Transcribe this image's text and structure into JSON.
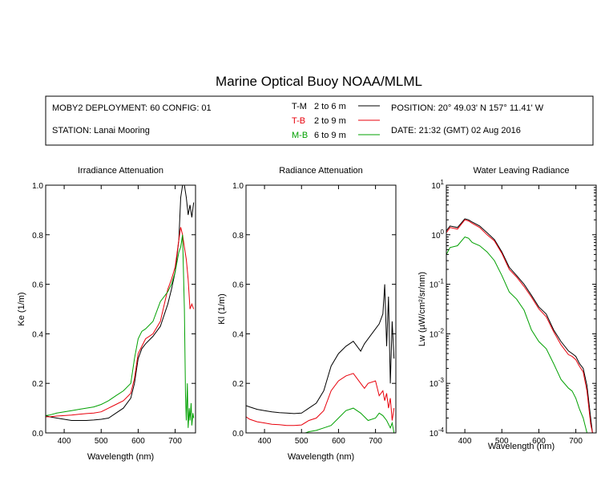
{
  "title": "Marine Optical Buoy NOAA/MLML",
  "info": {
    "deployment": "MOBY2 DEPLOYMENT: 60 CONFIG: 01",
    "station": "STATION: Lanai Mooring",
    "position": "POSITION: 20° 49.03' N   157° 11.41' W",
    "date": "DATE: 21:32 (GMT) 02 Aug 2016",
    "legend": [
      {
        "code": "T-M",
        "range": "2 to 6  m",
        "color": "#000000"
      },
      {
        "code": "T-B",
        "range": "2 to 9  m",
        "color": "#e8000b"
      },
      {
        "code": "M-B",
        "range": "6 to 9  m",
        "color": "#00a000"
      }
    ]
  },
  "chart_data": [
    {
      "type": "line",
      "title": "Irradiance Attenuation",
      "xlabel": "Wavelength (nm)",
      "ylabel": "Ke  (1/m)",
      "xlim": [
        350,
        755
      ],
      "ylim": [
        0,
        1.0
      ],
      "xticks": [
        "400",
        "500",
        "600",
        "700"
      ],
      "yticks": [
        "0.0",
        "0.2",
        "0.4",
        "0.6",
        "0.8",
        "1.0"
      ],
      "series": [
        {
          "name": "T-M",
          "color": "#000000",
          "x": [
            350,
            360,
            380,
            400,
            420,
            440,
            460,
            480,
            500,
            520,
            540,
            560,
            580,
            590,
            600,
            610,
            620,
            640,
            660,
            680,
            690,
            700,
            710,
            715,
            720,
            722,
            725,
            730,
            735,
            740,
            745,
            750
          ],
          "y": [
            0.07,
            0.065,
            0.06,
            0.055,
            0.05,
            0.05,
            0.05,
            0.052,
            0.055,
            0.06,
            0.08,
            0.1,
            0.14,
            0.2,
            0.3,
            0.34,
            0.36,
            0.39,
            0.43,
            0.52,
            0.58,
            0.65,
            0.78,
            0.95,
            1.0,
            1.0,
            1.0,
            0.95,
            0.88,
            0.92,
            0.87,
            0.93
          ]
        },
        {
          "name": "T-B",
          "color": "#e8000b",
          "x": [
            350,
            360,
            380,
            400,
            420,
            440,
            460,
            480,
            500,
            520,
            540,
            560,
            580,
            590,
            600,
            610,
            620,
            640,
            660,
            680,
            690,
            700,
            710,
            715,
            720,
            725,
            730,
            735,
            740,
            745,
            750
          ],
          "y": [
            0.065,
            0.065,
            0.068,
            0.07,
            0.072,
            0.075,
            0.078,
            0.08,
            0.085,
            0.1,
            0.115,
            0.13,
            0.16,
            0.22,
            0.32,
            0.35,
            0.38,
            0.4,
            0.45,
            0.58,
            0.62,
            0.67,
            0.78,
            0.83,
            0.8,
            0.75,
            0.7,
            0.62,
            0.5,
            0.52,
            0.5
          ]
        },
        {
          "name": "M-B",
          "color": "#00a000",
          "x": [
            350,
            360,
            380,
            400,
            420,
            440,
            460,
            480,
            500,
            520,
            540,
            560,
            580,
            590,
            600,
            610,
            620,
            640,
            660,
            680,
            690,
            700,
            710,
            715,
            720,
            725,
            728,
            730,
            733,
            735,
            738,
            740,
            743,
            745,
            748,
            750
          ],
          "y": [
            0.07,
            0.072,
            0.08,
            0.085,
            0.09,
            0.095,
            0.1,
            0.105,
            0.115,
            0.13,
            0.15,
            0.17,
            0.2,
            0.3,
            0.38,
            0.41,
            0.42,
            0.45,
            0.53,
            0.57,
            0.6,
            0.65,
            0.73,
            0.75,
            0.8,
            0.5,
            0.15,
            0.05,
            0.2,
            0.02,
            0.1,
            0.05,
            0.12,
            0.03,
            0.08,
            0.06
          ]
        }
      ]
    },
    {
      "type": "line",
      "title": "Radiance Attenuation",
      "xlabel": "Wavelength (nm)",
      "ylabel": "Kl  (1/m)",
      "xlim": [
        350,
        755
      ],
      "ylim": [
        0,
        1.0
      ],
      "xticks": [
        "400",
        "500",
        "600",
        "700"
      ],
      "yticks": [
        "0.0",
        "0.2",
        "0.4",
        "0.6",
        "0.8",
        "1.0"
      ],
      "series": [
        {
          "name": "T-M",
          "color": "#000000",
          "x": [
            350,
            360,
            380,
            400,
            420,
            440,
            460,
            480,
            500,
            520,
            540,
            560,
            580,
            600,
            620,
            640,
            660,
            670,
            680,
            700,
            710,
            720,
            725,
            730,
            735,
            740,
            745,
            750
          ],
          "y": [
            0.11,
            0.105,
            0.095,
            0.09,
            0.085,
            0.082,
            0.08,
            0.078,
            0.08,
            0.1,
            0.12,
            0.17,
            0.27,
            0.32,
            0.35,
            0.37,
            0.33,
            0.36,
            0.38,
            0.42,
            0.44,
            0.48,
            0.6,
            0.35,
            0.55,
            0.2,
            0.45,
            0.3
          ]
        },
        {
          "name": "T-B",
          "color": "#e8000b",
          "x": [
            350,
            360,
            380,
            400,
            420,
            440,
            460,
            480,
            500,
            520,
            540,
            560,
            580,
            600,
            620,
            640,
            660,
            670,
            680,
            700,
            710,
            720,
            725,
            730,
            735,
            740,
            745,
            750
          ],
          "y": [
            0.065,
            0.055,
            0.045,
            0.04,
            0.035,
            0.033,
            0.03,
            0.03,
            0.032,
            0.05,
            0.06,
            0.09,
            0.17,
            0.21,
            0.23,
            0.24,
            0.2,
            0.18,
            0.2,
            0.21,
            0.15,
            0.17,
            0.13,
            0.16,
            0.1,
            0.14,
            0.05,
            0.1
          ]
        },
        {
          "name": "M-B",
          "color": "#00a000",
          "x": [
            510,
            520,
            540,
            560,
            580,
            600,
            620,
            640,
            660,
            680,
            700,
            710,
            720,
            730,
            740,
            745,
            750
          ],
          "y": [
            0.0,
            0.005,
            0.01,
            0.02,
            0.03,
            0.06,
            0.09,
            0.1,
            0.08,
            0.05,
            0.06,
            0.08,
            0.07,
            0.05,
            0.02,
            0.04,
            0.0
          ]
        }
      ]
    },
    {
      "type": "line",
      "title": "Water Leaving Radiance",
      "xlabel": "Wavelength (nm)",
      "ylabel": "Lw  (µW/cm²/sr/nm)",
      "yscale": "log",
      "xlim": [
        350,
        755
      ],
      "ylim": [
        0.0001,
        10
      ],
      "xticks": [
        "400",
        "500",
        "600",
        "700"
      ],
      "yticks": [
        "10-4",
        "10-3",
        "10-2",
        "10-1",
        "100",
        "101"
      ],
      "series": [
        {
          "name": "T-M",
          "color": "#000000",
          "x": [
            350,
            360,
            380,
            400,
            410,
            420,
            440,
            460,
            480,
            500,
            520,
            540,
            560,
            580,
            600,
            620,
            640,
            660,
            680,
            690,
            700,
            710,
            720,
            730,
            740,
            745
          ],
          "y": [
            1.2,
            1.5,
            1.4,
            2.1,
            2.0,
            1.8,
            1.5,
            1.1,
            0.8,
            0.45,
            0.22,
            0.15,
            0.1,
            0.06,
            0.035,
            0.025,
            0.012,
            0.007,
            0.0045,
            0.004,
            0.0035,
            0.0025,
            0.002,
            0.0009,
            0.0002,
            0.0001
          ]
        },
        {
          "name": "T-B",
          "color": "#e8000b",
          "x": [
            350,
            360,
            380,
            400,
            410,
            420,
            440,
            460,
            480,
            500,
            520,
            540,
            560,
            580,
            600,
            620,
            640,
            660,
            680,
            690,
            700,
            710,
            720,
            730,
            740,
            745
          ],
          "y": [
            1.1,
            1.4,
            1.3,
            2.0,
            1.9,
            1.7,
            1.4,
            1.0,
            0.75,
            0.42,
            0.2,
            0.14,
            0.09,
            0.055,
            0.032,
            0.022,
            0.011,
            0.006,
            0.0038,
            0.0035,
            0.003,
            0.0022,
            0.0017,
            0.0007,
            0.00015,
            0.0001
          ]
        },
        {
          "name": "M-B",
          "color": "#00a000",
          "x": [
            350,
            360,
            380,
            400,
            410,
            420,
            440,
            460,
            480,
            500,
            520,
            540,
            560,
            580,
            600,
            620,
            640,
            660,
            680,
            690,
            700,
            710,
            720,
            730,
            735
          ],
          "y": [
            0.4,
            0.55,
            0.6,
            0.9,
            0.85,
            0.7,
            0.6,
            0.45,
            0.3,
            0.15,
            0.07,
            0.05,
            0.03,
            0.012,
            0.007,
            0.005,
            0.0025,
            0.0012,
            0.0008,
            0.0007,
            0.0005,
            0.0003,
            0.0002,
            0.0001,
            0.0001
          ]
        }
      ]
    }
  ]
}
